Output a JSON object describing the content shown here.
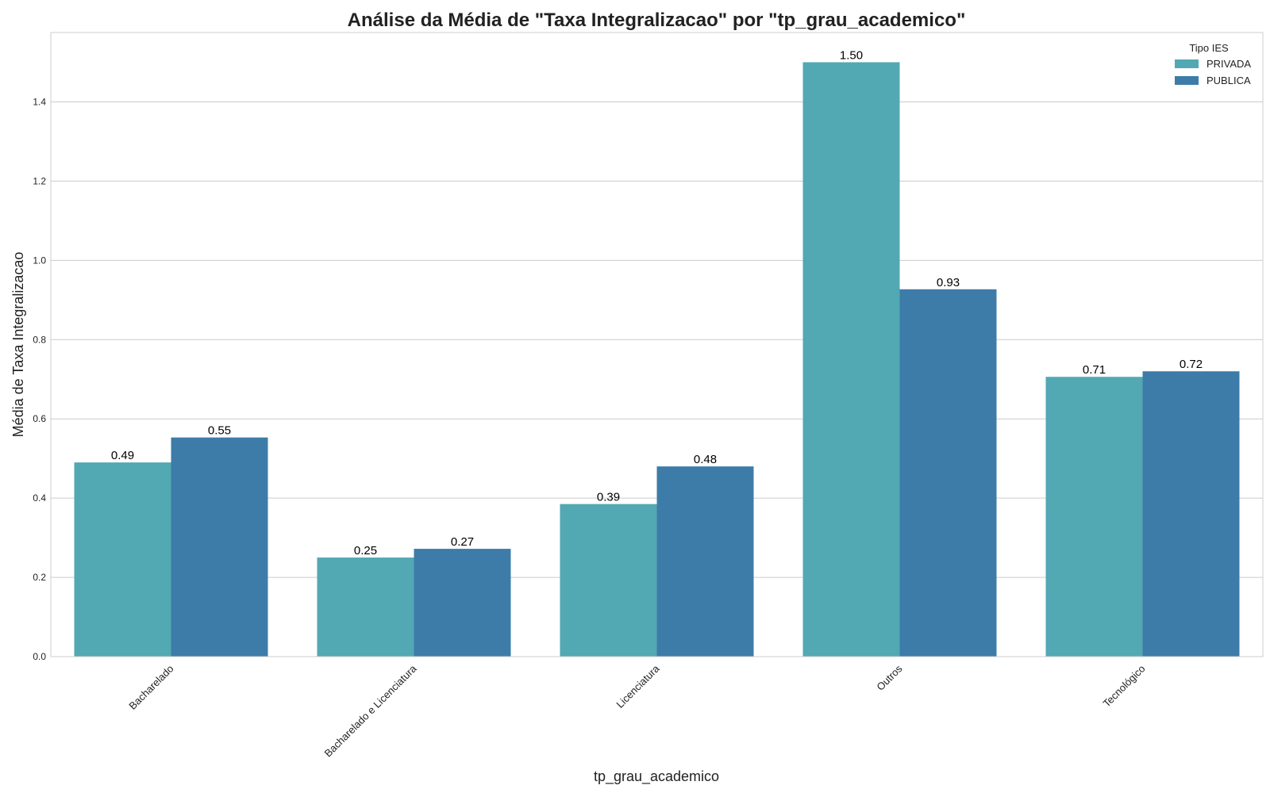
{
  "chart_data": {
    "type": "bar",
    "title": "Análise da Média de \"Taxa Integralizacao\" por \"tp_grau_academico\"",
    "xlabel": "tp_grau_academico",
    "ylabel": "Média de Taxa Integralizacao",
    "categories": [
      "Bacharelado",
      "Bacharelado e Licenciatura",
      "Licenciatura",
      "Outros",
      "Tecnológico"
    ],
    "series": [
      {
        "name": "PRIVADA",
        "color": "#52a8b3",
        "values": [
          0.49,
          0.25,
          0.385,
          1.5,
          0.706
        ],
        "labels": [
          "0.49",
          "0.25",
          "0.39",
          "1.50",
          "0.71"
        ]
      },
      {
        "name": "PUBLICA",
        "color": "#3d7ca8",
        "values": [
          0.553,
          0.272,
          0.48,
          0.927,
          0.72
        ],
        "labels": [
          "0.55",
          "0.27",
          "0.48",
          "0.93",
          "0.72"
        ]
      }
    ],
    "ylim": [
      0,
      1.575
    ],
    "yticks": [
      0.0,
      0.2,
      0.4,
      0.6,
      0.8,
      1.0,
      1.2,
      1.4
    ],
    "ytick_labels": [
      "0.0",
      "0.2",
      "0.4",
      "0.6",
      "0.8",
      "1.0",
      "1.2",
      "1.4"
    ],
    "grid": "horizontal",
    "legend": {
      "title": "Tipo IES",
      "placement": "top-right"
    }
  }
}
